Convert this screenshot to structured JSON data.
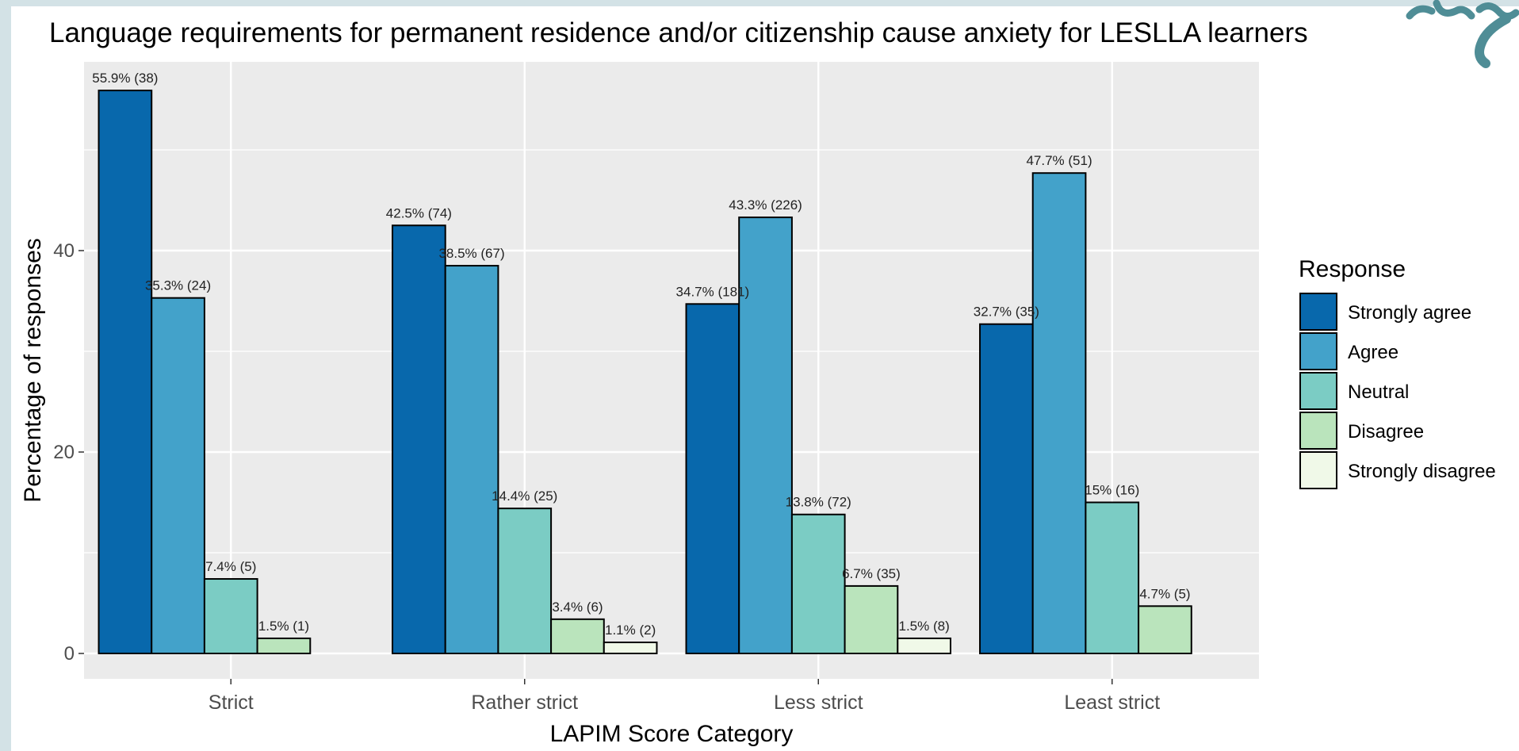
{
  "chart_data": {
    "type": "bar",
    "title": "Language requirements for permanent residence and/or citizenship cause anxiety for LESLLA learners",
    "xlabel": "LAPIM Score Category",
    "ylabel": "Percentage of responses",
    "ylim": [
      0,
      58
    ],
    "yticks": [
      0,
      20,
      40
    ],
    "grid": true,
    "legend": {
      "title": "Response",
      "position": "right"
    },
    "categories": [
      "Strict",
      "Rather strict",
      "Less strict",
      "Least strict"
    ],
    "series": [
      {
        "name": "Strongly agree",
        "color": "#0868ac",
        "values": [
          55.9,
          42.5,
          34.7,
          32.7
        ],
        "labels": [
          "55.9% (38)",
          "42.5% (74)",
          "34.7% (181)",
          "32.7% (35)"
        ]
      },
      {
        "name": "Agree",
        "color": "#43a2ca",
        "values": [
          35.3,
          38.5,
          43.3,
          47.7
        ],
        "labels": [
          "35.3% (24)",
          "38.5% (67)",
          "43.3% (226)",
          "47.7% (51)"
        ]
      },
      {
        "name": "Neutral",
        "color": "#7bccc4",
        "values": [
          7.4,
          14.4,
          13.8,
          15
        ],
        "labels": [
          "7.4% (5)",
          "14.4% (25)",
          "13.8% (72)",
          "15% (16)"
        ]
      },
      {
        "name": "Disagree",
        "color": "#bae4bc",
        "values": [
          1.5,
          3.4,
          6.7,
          4.7
        ],
        "labels": [
          "1.5% (1)",
          "3.4% (6)",
          "6.7% (35)",
          "4.7% (5)"
        ]
      },
      {
        "name": "Strongly disagree",
        "color": "#f0f9e8",
        "values": [
          null,
          1.1,
          1.5,
          null
        ],
        "labels": [
          "",
          "1.1% (2)",
          "1.5% (8)",
          ""
        ]
      }
    ]
  }
}
